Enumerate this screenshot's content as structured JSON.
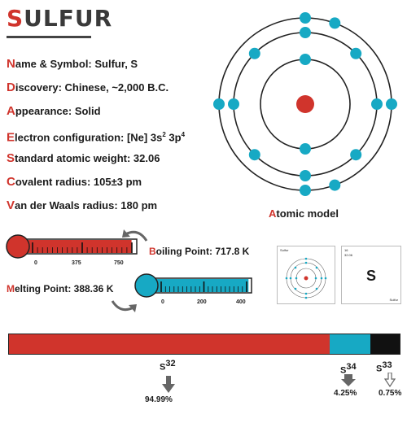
{
  "title": {
    "first_letter": "S",
    "rest": "ULFUR"
  },
  "facts": [
    {
      "cap": "N",
      "rest": "ame & Symbol: Sulfur, S"
    },
    {
      "cap": "D",
      "rest": "iscovery: Chinese, ~2,000 B.C."
    },
    {
      "cap": "A",
      "rest": "ppearance: Solid"
    },
    {
      "cap": "E",
      "rest": "lectron configuration: [Ne] 3s",
      "sup1": "2",
      "mid": " 3p",
      "sup2": "4"
    },
    {
      "cap": "S",
      "rest": "tandard atomic weight: 32.06"
    },
    {
      "cap": "C",
      "rest": "ovalent radius: 105±3 pm"
    },
    {
      "cap": "V",
      "rest": "an der Waals radius: 180 pm"
    }
  ],
  "atomic_model": {
    "label_cap": "A",
    "label_rest": "tomic model",
    "shells": [
      2,
      8,
      6
    ],
    "nucleus_color": "#d0342c",
    "electron_color": "#17a9c4"
  },
  "boiling": {
    "label_cap": "B",
    "label_rest": "oiling Point: 717.8 K",
    "ticks": [
      "0",
      "375",
      "750"
    ],
    "level": 0.955,
    "color": "#d0342c"
  },
  "melting": {
    "label_cap": "M",
    "label_rest": "elting Point: 388.36 K",
    "ticks": [
      "0",
      "200",
      "400"
    ],
    "level": 0.97,
    "color": "#17a9c4"
  },
  "card_left": {
    "name": "Sulfur"
  },
  "card_right": {
    "number": "16",
    "weight": "32.06",
    "symbol": "S",
    "name": "Sulfur"
  },
  "isotopes": [
    {
      "base": "S",
      "mass": "32",
      "percent": "94.99%",
      "share": 94.99,
      "color": "#d0342c"
    },
    {
      "base": "S",
      "mass": "34",
      "percent": "4.25%",
      "share": 4.25,
      "color": "#17a9c4"
    },
    {
      "base": "S",
      "mass": "33",
      "percent": "0.75%",
      "share": 0.75,
      "color": "#111111"
    }
  ]
}
